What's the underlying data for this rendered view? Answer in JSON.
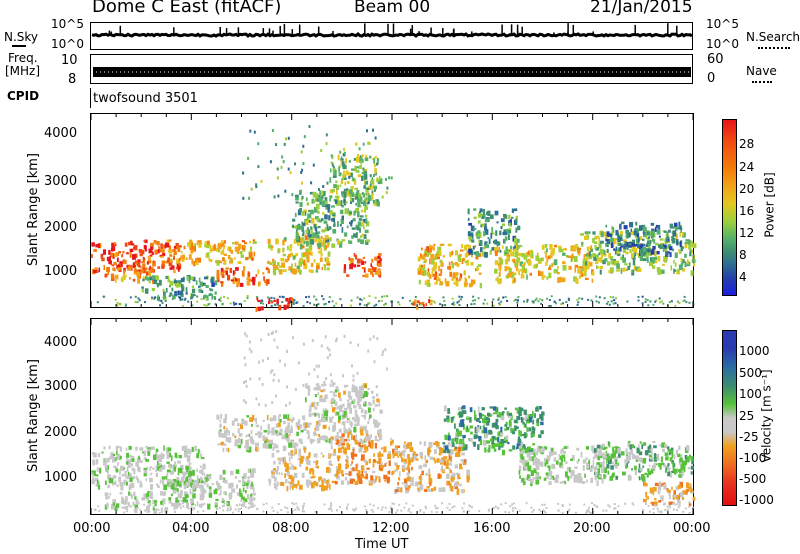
{
  "header": {
    "station": "Dome C East (fitACF)",
    "beam": "Beam 00",
    "date": "21/Jan/2015"
  },
  "nsky": {
    "label": "N.Sky",
    "left_ticks": [
      "10^5",
      "10^0"
    ],
    "right_ticks": [
      "10^5",
      "10^0"
    ],
    "right_label": "N.Search"
  },
  "freq": {
    "label_line1": "Freq.",
    "label_line2": "[MHz]",
    "left_ticks": [
      "10",
      "8"
    ],
    "right_ticks": [
      "60",
      "0"
    ],
    "right_label": "Nave"
  },
  "cpid": {
    "label": "CPID",
    "value": "twofsound 3501"
  },
  "power_panel": {
    "ylabel": "Slant Range [km]",
    "yticks": [
      "4000",
      "3000",
      "2000",
      "1000"
    ],
    "colorbar_label": "Power [dB]",
    "colorbar_ticks": [
      "28",
      "24",
      "20",
      "16",
      "12",
      "8",
      "4"
    ],
    "colors": [
      "#e8141b",
      "#f04a10",
      "#f57d0a",
      "#f2a31a",
      "#e3c81f",
      "#9bcf3c",
      "#54b06a",
      "#3f8f71",
      "#2f6f91",
      "#2442a8",
      "#1d1fe0"
    ]
  },
  "velocity_panel": {
    "ylabel": "Slant Range [km]",
    "yticks": [
      "4000",
      "3000",
      "2000",
      "1000"
    ],
    "colorbar_label": "Velocity [m s⁻¹]",
    "colorbar_ticks": [
      "1000",
      "500",
      "100",
      "25",
      "-25",
      "-100",
      "-500",
      "-1000"
    ],
    "colors": [
      "#2a3ab0",
      "#2a6aa6",
      "#3d8f6e",
      "#56c23a",
      "#c8c8c8",
      "#c8c8c8",
      "#f0a020",
      "#f07020",
      "#e83020",
      "#e01010"
    ]
  },
  "xaxis": {
    "ticks": [
      "00:00",
      "04:00",
      "08:00",
      "12:00",
      "16:00",
      "20:00",
      "00:00"
    ],
    "label": "Time UT"
  },
  "chart_data": [
    {
      "type": "heatmap",
      "title": "",
      "xlabel": "Time UT",
      "ylabel": "Slant Range [km]",
      "x_range": [
        "00:00",
        "24:00"
      ],
      "y_range_km": [
        180,
        4500
      ],
      "colorbar": "Power [dB]",
      "colorbar_range": [
        0,
        30
      ],
      "blobs": [
        {
          "t0": 0.0,
          "t1": 3.5,
          "r0": 1000,
          "r1": 1700,
          "value": 26
        },
        {
          "t0": 0.5,
          "t1": 2.5,
          "r0": 800,
          "r1": 1100,
          "value": 22
        },
        {
          "t0": 2.0,
          "t1": 5.0,
          "r0": 400,
          "r1": 900,
          "value": 10
        },
        {
          "t0": 3.0,
          "t1": 6.5,
          "r0": 1200,
          "r1": 1700,
          "value": 20
        },
        {
          "t0": 5.0,
          "t1": 7.0,
          "r0": 700,
          "r1": 1100,
          "value": 24
        },
        {
          "t0": 6.5,
          "t1": 8.0,
          "r0": 180,
          "r1": 400,
          "value": 28
        },
        {
          "t0": 7.0,
          "t1": 9.5,
          "r0": 1000,
          "r1": 1800,
          "value": 18
        },
        {
          "t0": 8.0,
          "t1": 11.0,
          "r0": 1600,
          "r1": 2800,
          "value": 12
        },
        {
          "t0": 9.5,
          "t1": 11.5,
          "r0": 2500,
          "r1": 3600,
          "value": 14
        },
        {
          "t0": 10.0,
          "t1": 11.5,
          "r0": 900,
          "r1": 1400,
          "value": 26
        },
        {
          "t0": 12.5,
          "t1": 13.5,
          "r0": 200,
          "r1": 400,
          "value": 24
        },
        {
          "t0": 13.0,
          "t1": 15.5,
          "r0": 700,
          "r1": 1600,
          "value": 20
        },
        {
          "t0": 15.0,
          "t1": 17.0,
          "r0": 1400,
          "r1": 2400,
          "value": 10
        },
        {
          "t0": 16.0,
          "t1": 20.0,
          "r0": 800,
          "r1": 1600,
          "value": 18
        },
        {
          "t0": 19.5,
          "t1": 24.0,
          "r0": 1000,
          "r1": 1900,
          "value": 14
        },
        {
          "t0": 20.5,
          "t1": 23.5,
          "r0": 1400,
          "r1": 2100,
          "value": 8
        }
      ]
    },
    {
      "type": "heatmap",
      "title": "",
      "xlabel": "Time UT",
      "ylabel": "Slant Range [km]",
      "x_range": [
        "00:00",
        "24:00"
      ],
      "y_range_km": [
        180,
        4500
      ],
      "colorbar": "Velocity [m s⁻¹]",
      "colorbar_range": [
        -1000,
        1000
      ],
      "blobs": [
        {
          "t0": 0.0,
          "t1": 4.5,
          "r0": 800,
          "r1": 1700,
          "value": 120
        },
        {
          "t0": 0.5,
          "t1": 3.0,
          "r0": 300,
          "r1": 700,
          "value": 80
        },
        {
          "t0": 3.0,
          "t1": 6.5,
          "r0": 400,
          "r1": 1200,
          "value": 150
        },
        {
          "t0": 5.0,
          "t1": 8.5,
          "r0": 1600,
          "r1": 2400,
          "value": 0
        },
        {
          "t0": 7.0,
          "t1": 9.5,
          "r0": 800,
          "r1": 1600,
          "value": -150
        },
        {
          "t0": 8.5,
          "t1": 11.5,
          "r0": 1800,
          "r1": 3100,
          "value": 0
        },
        {
          "t0": 9.5,
          "t1": 12.0,
          "r0": 900,
          "r1": 2000,
          "value": -300
        },
        {
          "t0": 12.0,
          "t1": 15.0,
          "r0": 700,
          "r1": 1800,
          "value": -200
        },
        {
          "t0": 14.0,
          "t1": 18.0,
          "r0": 1600,
          "r1": 2600,
          "value": 400
        },
        {
          "t0": 17.0,
          "t1": 20.5,
          "r0": 900,
          "r1": 1700,
          "value": 150
        },
        {
          "t0": 20.0,
          "t1": 24.0,
          "r0": 1000,
          "r1": 1800,
          "value": 300
        },
        {
          "t0": 22.0,
          "t1": 24.0,
          "r0": 400,
          "r1": 900,
          "value": -250
        }
      ]
    }
  ]
}
